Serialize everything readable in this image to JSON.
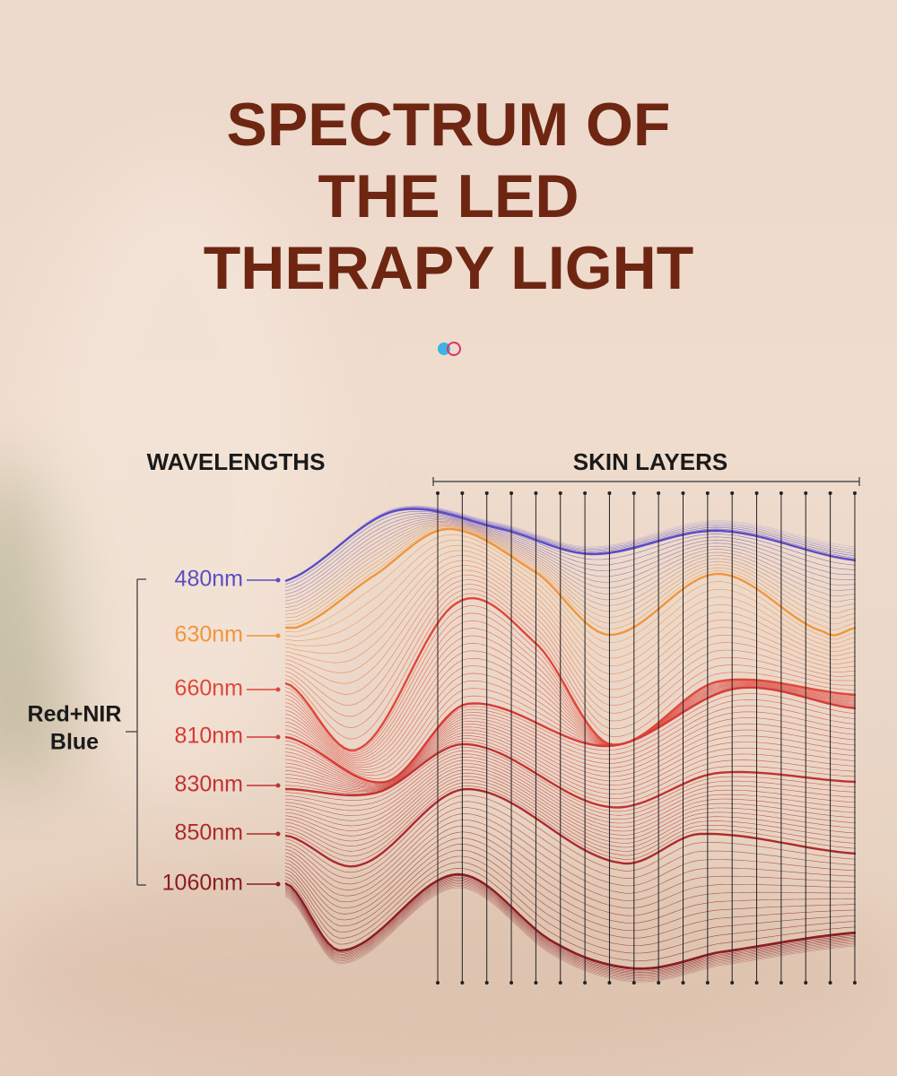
{
  "title_lines": [
    "SPECTRUM OF",
    "THE LED",
    "THERAPY LIGHT"
  ],
  "wavelengths_heading": "WAVELENGTHS",
  "skin_layers_heading": "SKIN LAYERS",
  "group_label": [
    "Red+NIR",
    "Blue"
  ],
  "wavelengths": [
    {
      "label": "480nm",
      "color": "#5b4cc6"
    },
    {
      "label": "630nm",
      "color": "#f0963c"
    },
    {
      "label": "660nm",
      "color": "#e0473a"
    },
    {
      "label": "810nm",
      "color": "#d83a36"
    },
    {
      "label": "830nm",
      "color": "#c23232"
    },
    {
      "label": "850nm",
      "color": "#ad2a2c"
    },
    {
      "label": "1060nm",
      "color": "#8c1d22"
    }
  ]
}
